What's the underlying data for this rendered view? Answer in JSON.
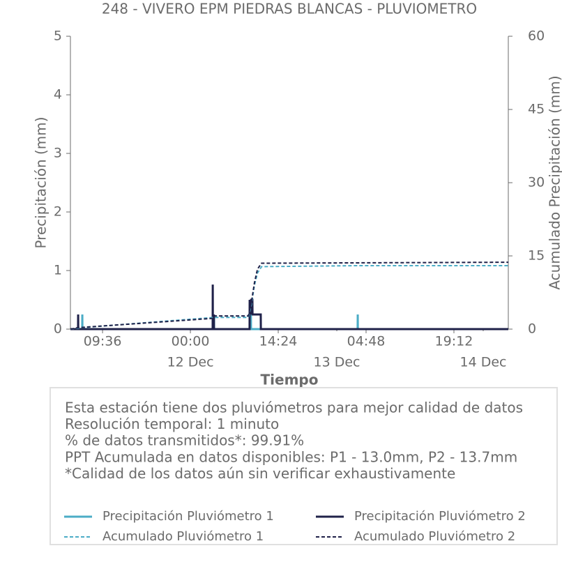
{
  "chart_data": {
    "type": "line",
    "title": "248 - VIVERO EPM PIEDRAS BLANCAS - PLUVIOMETRO",
    "xlabel": "Tiempo",
    "ylabel": "Precipitación (mm)",
    "y2label": "Acumulado Precipitación (mm)",
    "xlim": [
      "11 Dec 04:20",
      "14 Dec 04:07"
    ],
    "xticks": [
      {
        "value": "11 Dec 09:36",
        "label": "09:36"
      },
      {
        "value": "12 Dec 00:00",
        "label": "00:00"
      },
      {
        "value": "12 Dec 14:24",
        "label": "14:24"
      },
      {
        "value": "13 Dec 04:48",
        "label": "04:48"
      },
      {
        "value": "13 Dec 19:12",
        "label": "19:12"
      }
    ],
    "xdateticks": [
      {
        "value": "12 Dec 00:00",
        "label": "12 Dec"
      },
      {
        "value": "13 Dec 00:00",
        "label": "13 Dec"
      },
      {
        "value": "14 Dec 00:00",
        "label": "14 Dec"
      }
    ],
    "ylim": [
      0,
      5
    ],
    "yticks": [
      0,
      1,
      2,
      3,
      4,
      5
    ],
    "y2lim": [
      0,
      60
    ],
    "y2ticks": [
      0,
      15,
      30,
      45,
      60
    ],
    "series": [
      {
        "name": "Precipitación Pluviómetro 1",
        "color": "#4bacc6",
        "style": "solid",
        "x": [
          "11 Dec 04:20",
          "11 Dec 06:16",
          "11 Dec 06:17",
          "11 Dec 06:18",
          "12 Dec 03:51",
          "12 Dec 03:52",
          "12 Dec 03:53",
          "12 Dec 09:54",
          "12 Dec 09:55",
          "12 Dec 09:56",
          "13 Dec 03:25",
          "13 Dec 03:26",
          "13 Dec 03:27",
          "14 Dec 04:07"
        ],
        "values": [
          0,
          0,
          0.25,
          0,
          0,
          0.25,
          0,
          0,
          0.5,
          0,
          0,
          0.25,
          0,
          0
        ]
      },
      {
        "name": "Precipitación Pluviómetro 2",
        "color": "#1f2149",
        "style": "solid",
        "x": [
          "11 Dec 04:20",
          "11 Dec 05:35",
          "11 Dec 05:36",
          "11 Dec 05:37",
          "12 Dec 03:39",
          "12 Dec 03:40",
          "12 Dec 03:41",
          "12 Dec 03:50",
          "12 Dec 03:51",
          "12 Dec 03:52",
          "12 Dec 09:42",
          "12 Dec 09:43",
          "12 Dec 09:50",
          "12 Dec 09:57",
          "12 Dec 10:10",
          "12 Dec 10:11",
          "12 Dec 10:30",
          "12 Dec 11:32",
          "12 Dec 11:33",
          "14 Dec 04:07"
        ],
        "values": [
          0,
          0,
          0.25,
          0,
          0,
          0.76,
          0,
          0,
          0.25,
          0,
          0,
          0.5,
          0.25,
          0.5,
          0.5,
          0.25,
          0.25,
          0.25,
          0,
          0
        ]
      },
      {
        "name": "Acumulado Pluviómetro 1",
        "color": "#4bacc6",
        "style": "dashed",
        "axis": "y2",
        "x": [
          "11 Dec 04:20",
          "11 Dec 06:17",
          "12 Dec 03:52",
          "12 Dec 09:30",
          "12 Dec 10:00",
          "12 Dec 10:30",
          "12 Dec 11:00",
          "12 Dec 11:40",
          "13 Dec 03:26",
          "14 Dec 04:07"
        ],
        "values": [
          0,
          0.3,
          2.4,
          2.4,
          5,
          9,
          11.5,
          12.8,
          13.0,
          13.0
        ]
      },
      {
        "name": "Acumulado Pluviómetro 2",
        "color": "#1f2149",
        "style": "dashed",
        "axis": "y2",
        "x": [
          "11 Dec 04:20",
          "11 Dec 05:36",
          "12 Dec 03:40",
          "12 Dec 03:51",
          "12 Dec 09:30",
          "12 Dec 10:00",
          "12 Dec 10:30",
          "12 Dec 11:00",
          "12 Dec 11:40",
          "14 Dec 04:07"
        ],
        "values": [
          0,
          0.3,
          2.2,
          2.7,
          2.7,
          5.5,
          9.5,
          12.3,
          13.5,
          13.7
        ]
      }
    ],
    "info_lines": [
      "Esta estación tiene dos pluviómetros para mejor calidad de datos",
      "Resolución temporal: 1 minuto",
      "% de datos transmitidos*: 99.91%",
      "PPT Acumulada en datos disponibles: P1 - 13.0mm, P2 - 13.7mm",
      "*Calidad de los datos aún sin verificar exhaustivamente"
    ]
  }
}
